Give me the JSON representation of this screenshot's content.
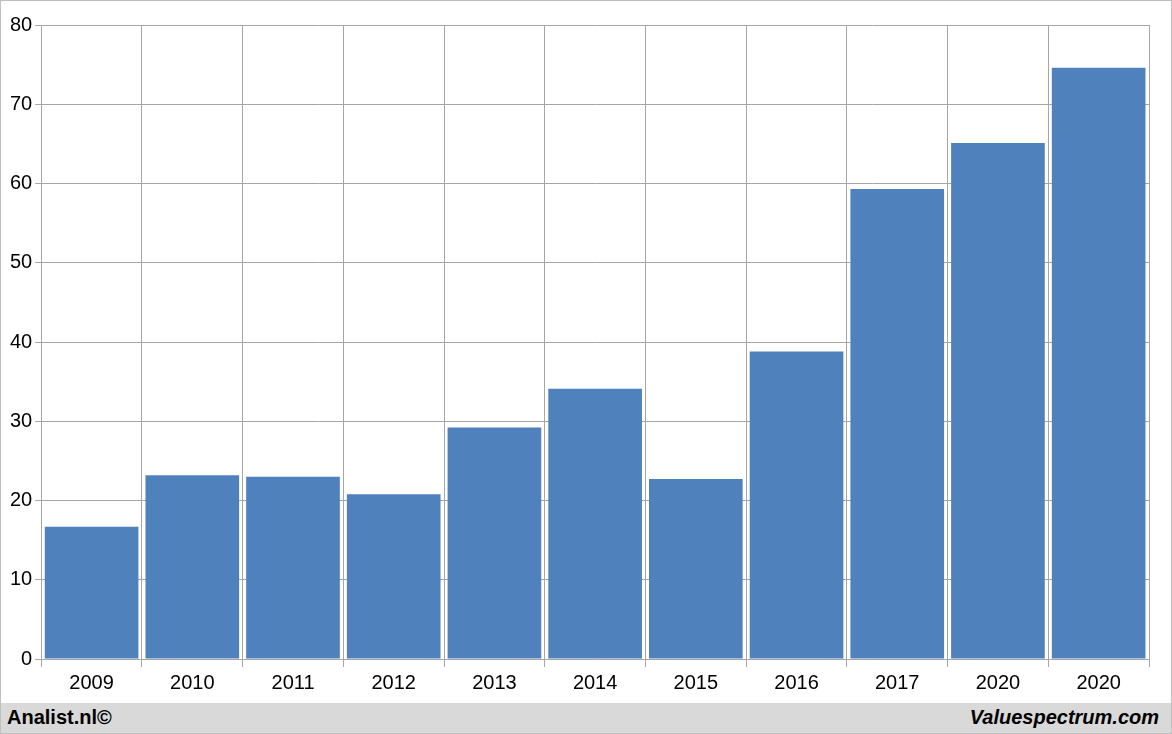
{
  "chart_data": {
    "type": "bar",
    "categories": [
      "2009",
      "2010",
      "2011",
      "2012",
      "2013",
      "2014",
      "2015",
      "2016",
      "2017",
      "2020",
      "2020"
    ],
    "values": [
      16.7,
      23.2,
      23.0,
      20.8,
      29.2,
      34.1,
      22.7,
      38.8,
      59.3,
      65.1,
      74.6
    ],
    "color": "#4f81bd",
    "ylim": [
      0,
      80
    ],
    "yticks": [
      0,
      10,
      20,
      30,
      40,
      50,
      60,
      70,
      80
    ],
    "grid": true,
    "annotations": [
      "Analist.nl©",
      "Valuespectrum.com"
    ]
  }
}
